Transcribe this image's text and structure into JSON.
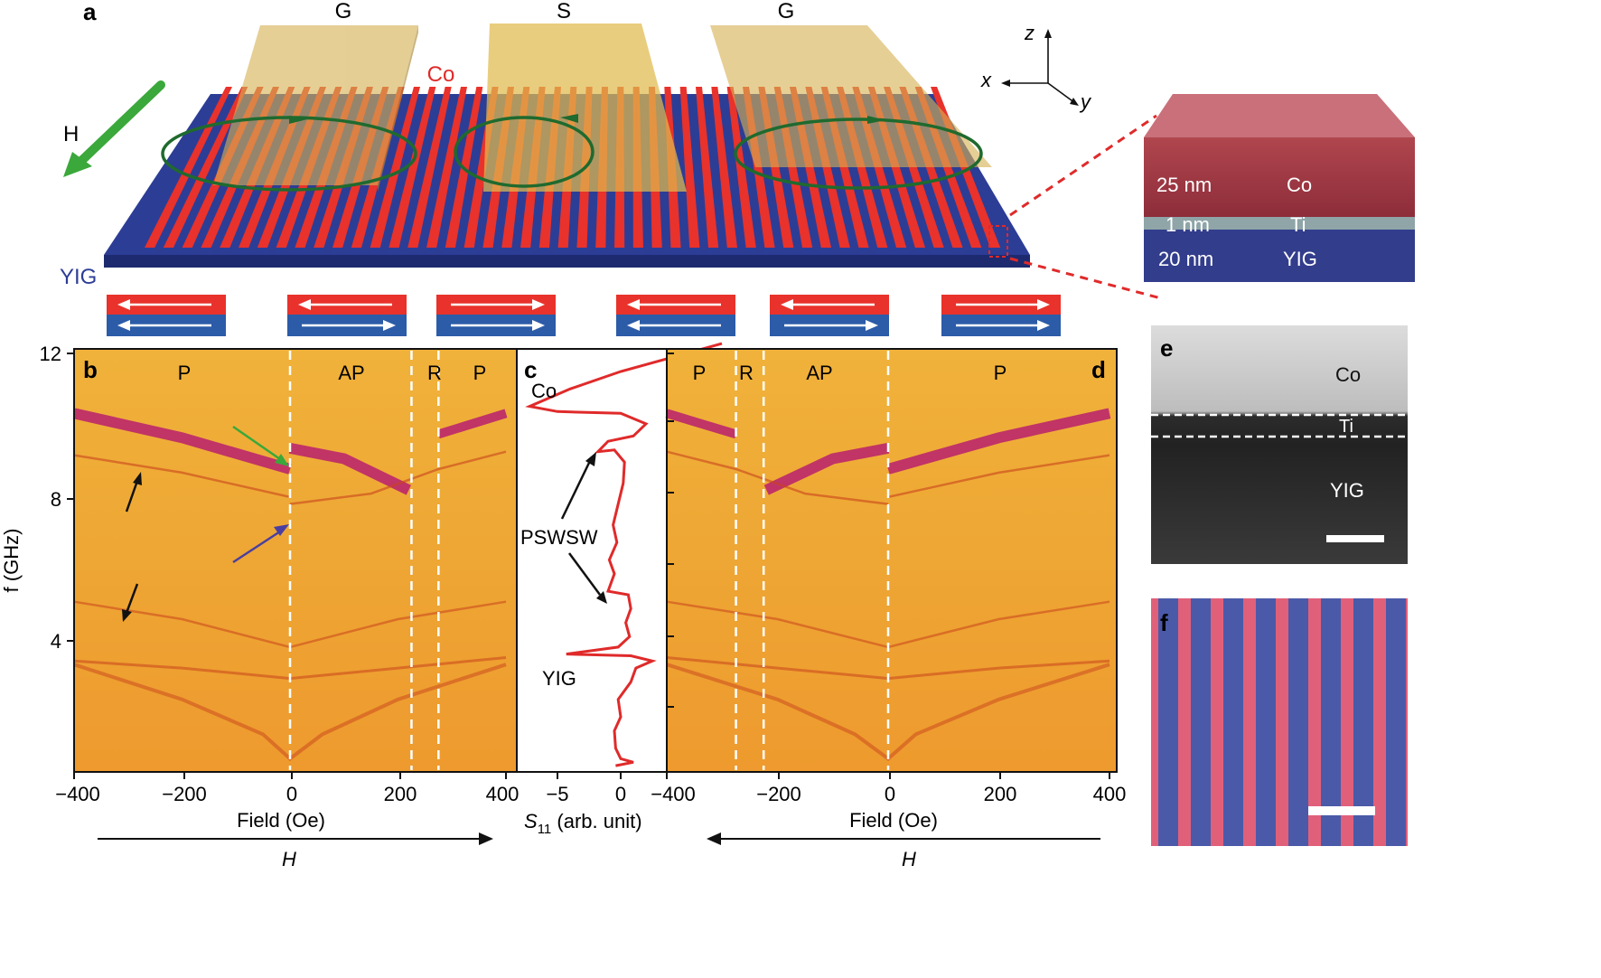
{
  "panel_a": {
    "letter": "a",
    "electrodes": [
      "G",
      "S",
      "G"
    ],
    "co_label": "Co",
    "yig_label": "YIG",
    "h_label": "H",
    "axes": {
      "z": "z",
      "x": "x",
      "y": "y"
    },
    "stack": [
      {
        "thickness": "25 nm",
        "material": "Co"
      },
      {
        "thickness": "1 nm",
        "material": "Ti"
      },
      {
        "thickness": "20 nm",
        "material": "YIG"
      }
    ],
    "colors": {
      "co": "#e8322b",
      "yig": "#2c3d96",
      "electrode": "#d9b24c",
      "arrow": "#3aa83a"
    }
  },
  "magnetization_states": [
    {
      "top": "left",
      "bottom": "left"
    },
    {
      "top": "left",
      "bottom": "right"
    },
    {
      "top": "right",
      "bottom": "right"
    },
    {
      "top": "left",
      "bottom": "left"
    },
    {
      "top": "left",
      "bottom": "right"
    },
    {
      "top": "right",
      "bottom": "right"
    }
  ],
  "panel_b": {
    "letter": "b",
    "regions": [
      "P",
      "AP",
      "R",
      "P"
    ],
    "ylabel": "f (GHz)",
    "yticks": [
      "12",
      "8",
      "4"
    ],
    "xticks": [
      "−400",
      "−200",
      "0",
      "200",
      "400"
    ],
    "xlabel": "Field (Oe)",
    "sweep": "H",
    "dashed_fields": [
      0,
      225,
      275
    ]
  },
  "panel_c": {
    "letter": "c",
    "labels": {
      "co": "Co",
      "pswsw": "PSWSW",
      "yig": "YIG"
    },
    "xticks": [
      "−5",
      "0"
    ],
    "xlabel": "S11 (arb. unit)",
    "xlabel_main": "S",
    "xlabel_sub": "11",
    "xlabel_rest": " (arb. unit)"
  },
  "panel_d": {
    "letter": "d",
    "regions": [
      "P",
      "R",
      "AP",
      "P"
    ],
    "xticks": [
      "−400",
      "−200",
      "0",
      "200",
      "400"
    ],
    "xlabel": "Field (Oe)",
    "sweep": "H",
    "dashed_fields": [
      -275,
      -225,
      0
    ]
  },
  "panel_e": {
    "letter": "e",
    "labels": [
      "Co",
      "Ti",
      "YIG"
    ]
  },
  "panel_f": {
    "letter": "f"
  }
}
